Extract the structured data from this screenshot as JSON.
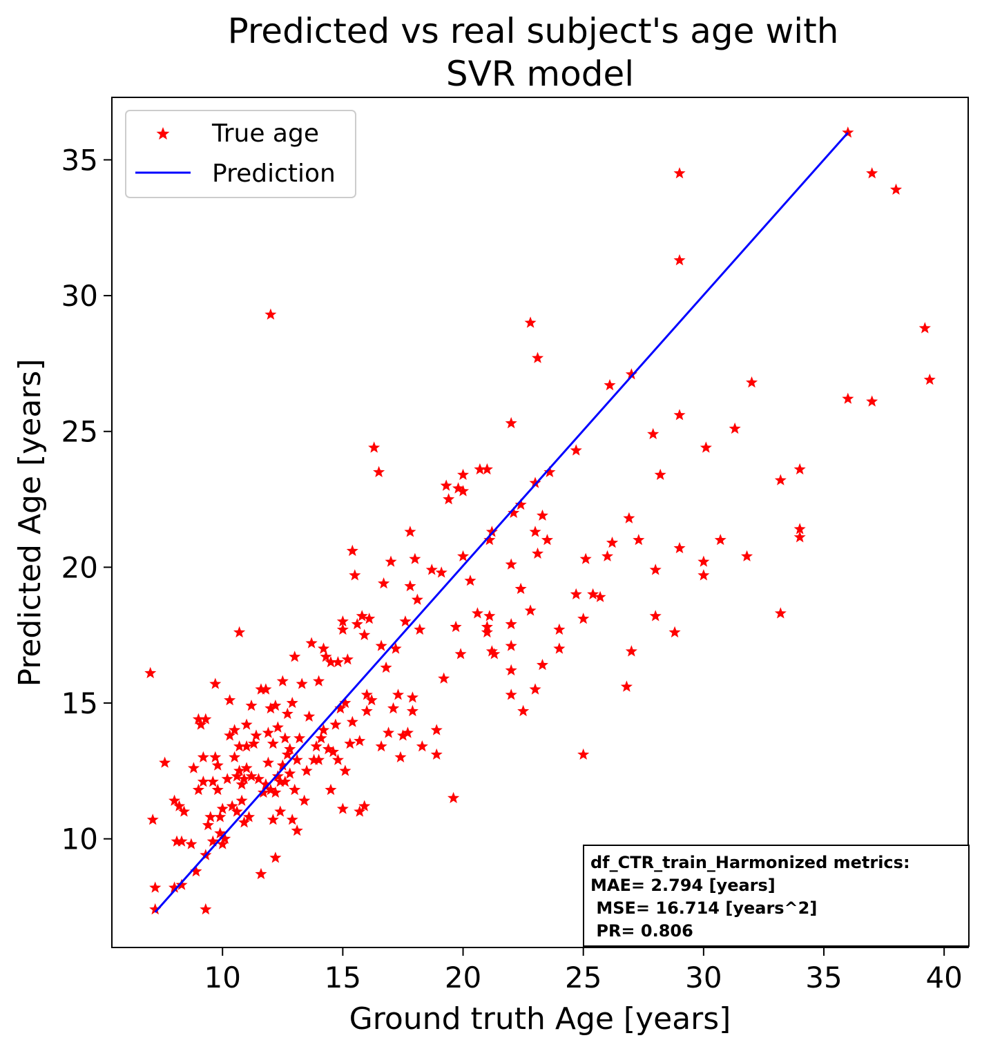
{
  "chart_data": {
    "type": "scatter",
    "title_lines": [
      "Predicted vs real subject's age with",
      "SVR model"
    ],
    "xlabel": "Ground truth Age [years]",
    "ylabel": "Predicted Age [years]",
    "xlim": [
      5.4,
      41
    ],
    "ylim": [
      6,
      37.3
    ],
    "xticks": [
      10,
      15,
      20,
      25,
      30,
      35,
      40
    ],
    "yticks": [
      10,
      15,
      20,
      25,
      30,
      35
    ],
    "grid": false,
    "legend": {
      "placement": "top-left",
      "entries": [
        {
          "label": "True age",
          "marker": "star",
          "color": "#ff0000"
        },
        {
          "label": "Prediction",
          "marker": "line",
          "color": "#0000ff"
        }
      ]
    },
    "metrics_box": {
      "placement": "bottom-right",
      "lines": [
        "df_CTR_train_Harmonized metrics:",
        "MAE= 2.794 [years]",
        " MSE= 16.714 [years^2]",
        " PR= 0.806"
      ]
    },
    "series": [
      {
        "name": "True age",
        "color": "#ff0000",
        "points": [
          [
            7.0,
            16.1
          ],
          [
            7.1,
            10.7
          ],
          [
            7.2,
            7.4
          ],
          [
            7.2,
            8.2
          ],
          [
            7.6,
            12.8
          ],
          [
            8.0,
            11.4
          ],
          [
            8.0,
            8.2
          ],
          [
            8.1,
            9.9
          ],
          [
            8.2,
            11.2
          ],
          [
            8.3,
            8.3
          ],
          [
            8.3,
            9.9
          ],
          [
            8.4,
            11.0
          ],
          [
            8.7,
            9.8
          ],
          [
            8.8,
            12.6
          ],
          [
            8.9,
            8.8
          ],
          [
            9.0,
            11.8
          ],
          [
            9.0,
            14.4
          ],
          [
            9.1,
            14.2
          ],
          [
            9.2,
            13.0
          ],
          [
            9.2,
            12.1
          ],
          [
            9.3,
            14.4
          ],
          [
            9.3,
            9.4
          ],
          [
            9.3,
            7.4
          ],
          [
            9.4,
            10.5
          ],
          [
            9.5,
            10.8
          ],
          [
            9.6,
            12.1
          ],
          [
            9.6,
            9.9
          ],
          [
            9.7,
            13.0
          ],
          [
            9.7,
            15.7
          ],
          [
            9.8,
            12.7
          ],
          [
            9.8,
            11.8
          ],
          [
            9.9,
            10.8
          ],
          [
            9.9,
            10.2
          ],
          [
            10.0,
            11.1
          ],
          [
            10.0,
            9.8
          ],
          [
            10.1,
            10.0
          ],
          [
            10.2,
            12.2
          ],
          [
            10.3,
            13.8
          ],
          [
            10.3,
            15.1
          ],
          [
            10.4,
            11.2
          ],
          [
            10.5,
            13.0
          ],
          [
            10.5,
            14.0
          ],
          [
            10.6,
            12.3
          ],
          [
            10.6,
            11.0
          ],
          [
            10.7,
            12.5
          ],
          [
            10.7,
            13.4
          ],
          [
            10.7,
            17.6
          ],
          [
            10.8,
            12.0
          ],
          [
            10.8,
            11.4
          ],
          [
            10.9,
            10.6
          ],
          [
            10.9,
            12.2
          ],
          [
            11.0,
            13.4
          ],
          [
            11.0,
            14.2
          ],
          [
            11.0,
            12.6
          ],
          [
            11.1,
            10.8
          ],
          [
            11.2,
            14.9
          ],
          [
            11.2,
            12.3
          ],
          [
            11.3,
            13.5
          ],
          [
            11.4,
            13.8
          ],
          [
            11.5,
            12.2
          ],
          [
            11.6,
            15.5
          ],
          [
            11.6,
            8.7
          ],
          [
            11.7,
            11.7
          ],
          [
            11.8,
            15.5
          ],
          [
            11.8,
            12.0
          ],
          [
            11.9,
            13.9
          ],
          [
            11.9,
            12.8
          ],
          [
            12.0,
            11.8
          ],
          [
            12.0,
            14.8
          ],
          [
            12.0,
            29.3
          ],
          [
            12.1,
            13.5
          ],
          [
            12.1,
            10.7
          ],
          [
            12.2,
            9.3
          ],
          [
            12.2,
            14.9
          ],
          [
            12.2,
            11.7
          ],
          [
            12.3,
            12.3
          ],
          [
            12.3,
            14.1
          ],
          [
            12.4,
            12.1
          ],
          [
            12.4,
            11.0
          ],
          [
            12.5,
            12.7
          ],
          [
            12.5,
            15.8
          ],
          [
            12.6,
            13.7
          ],
          [
            12.6,
            12.1
          ],
          [
            12.7,
            14.6
          ],
          [
            12.7,
            13.1
          ],
          [
            12.8,
            12.4
          ],
          [
            12.8,
            13.3
          ],
          [
            12.9,
            15.0
          ],
          [
            12.9,
            10.7
          ],
          [
            13.0,
            11.8
          ],
          [
            13.0,
            16.7
          ],
          [
            13.1,
            12.9
          ],
          [
            13.1,
            10.3
          ],
          [
            13.2,
            13.7
          ],
          [
            13.3,
            15.7
          ],
          [
            13.4,
            11.4
          ],
          [
            13.5,
            12.5
          ],
          [
            13.6,
            14.5
          ],
          [
            13.7,
            17.2
          ],
          [
            13.8,
            12.9
          ],
          [
            13.9,
            13.4
          ],
          [
            14.0,
            15.8
          ],
          [
            14.0,
            12.9
          ],
          [
            14.1,
            13.7
          ],
          [
            14.2,
            14.0
          ],
          [
            14.2,
            17.0
          ],
          [
            14.3,
            16.7
          ],
          [
            14.4,
            13.3
          ],
          [
            14.5,
            11.8
          ],
          [
            14.5,
            16.5
          ],
          [
            14.6,
            13.2
          ],
          [
            14.7,
            14.2
          ],
          [
            14.8,
            12.9
          ],
          [
            14.8,
            16.5
          ],
          [
            14.9,
            14.8
          ],
          [
            15.0,
            17.7
          ],
          [
            15.0,
            18.0
          ],
          [
            15.0,
            11.1
          ],
          [
            15.1,
            15.0
          ],
          [
            15.1,
            12.5
          ],
          [
            15.2,
            16.6
          ],
          [
            15.3,
            13.5
          ],
          [
            15.4,
            20.6
          ],
          [
            15.4,
            14.3
          ],
          [
            15.5,
            19.7
          ],
          [
            15.6,
            17.9
          ],
          [
            15.7,
            13.6
          ],
          [
            15.7,
            11.0
          ],
          [
            15.8,
            18.2
          ],
          [
            15.9,
            17.5
          ],
          [
            15.9,
            11.2
          ],
          [
            16.0,
            15.3
          ],
          [
            16.0,
            14.7
          ],
          [
            16.1,
            18.1
          ],
          [
            16.2,
            15.1
          ],
          [
            16.3,
            24.4
          ],
          [
            16.5,
            23.5
          ],
          [
            16.6,
            13.4
          ],
          [
            16.6,
            17.1
          ],
          [
            16.7,
            19.4
          ],
          [
            16.8,
            16.3
          ],
          [
            16.9,
            13.9
          ],
          [
            17.0,
            20.2
          ],
          [
            17.1,
            14.8
          ],
          [
            17.2,
            17.0
          ],
          [
            17.3,
            15.3
          ],
          [
            17.4,
            13.0
          ],
          [
            17.5,
            13.8
          ],
          [
            17.6,
            18.0
          ],
          [
            17.7,
            13.9
          ],
          [
            17.8,
            21.3
          ],
          [
            17.8,
            19.3
          ],
          [
            17.9,
            15.2
          ],
          [
            17.9,
            14.7
          ],
          [
            18.0,
            20.3
          ],
          [
            18.1,
            18.8
          ],
          [
            18.2,
            17.7
          ],
          [
            18.3,
            13.4
          ],
          [
            18.7,
            19.9
          ],
          [
            18.9,
            14.0
          ],
          [
            18.9,
            13.1
          ],
          [
            19.1,
            19.8
          ],
          [
            19.2,
            15.9
          ],
          [
            19.3,
            23.0
          ],
          [
            19.4,
            22.5
          ],
          [
            19.6,
            11.5
          ],
          [
            19.7,
            17.8
          ],
          [
            19.8,
            22.9
          ],
          [
            19.9,
            16.8
          ],
          [
            20.0,
            23.4
          ],
          [
            20.0,
            22.8
          ],
          [
            20.0,
            20.4
          ],
          [
            20.3,
            19.5
          ],
          [
            20.6,
            18.3
          ],
          [
            20.7,
            23.6
          ],
          [
            21.0,
            23.6
          ],
          [
            21.0,
            17.8
          ],
          [
            21.0,
            17.6
          ],
          [
            21.1,
            21.0
          ],
          [
            21.1,
            18.2
          ],
          [
            21.2,
            21.3
          ],
          [
            21.2,
            16.9
          ],
          [
            21.3,
            16.8
          ],
          [
            22.0,
            25.3
          ],
          [
            22.0,
            20.1
          ],
          [
            22.0,
            17.9
          ],
          [
            22.0,
            17.1
          ],
          [
            22.0,
            16.2
          ],
          [
            22.0,
            15.3
          ],
          [
            22.1,
            22.0
          ],
          [
            22.4,
            22.3
          ],
          [
            22.4,
            19.2
          ],
          [
            22.5,
            14.7
          ],
          [
            22.8,
            29.0
          ],
          [
            22.8,
            18.4
          ],
          [
            23.0,
            23.1
          ],
          [
            23.0,
            21.3
          ],
          [
            23.0,
            15.5
          ],
          [
            23.1,
            27.7
          ],
          [
            23.1,
            20.5
          ],
          [
            23.3,
            16.4
          ],
          [
            23.3,
            21.9
          ],
          [
            23.5,
            21.0
          ],
          [
            23.6,
            23.5
          ],
          [
            24.0,
            17.7
          ],
          [
            24.0,
            17.0
          ],
          [
            24.7,
            24.3
          ],
          [
            24.7,
            19.0
          ],
          [
            25.0,
            13.1
          ],
          [
            25.0,
            18.1
          ],
          [
            25.1,
            20.3
          ],
          [
            25.4,
            19.0
          ],
          [
            25.7,
            18.9
          ],
          [
            26.0,
            20.4
          ],
          [
            26.1,
            26.7
          ],
          [
            26.2,
            20.9
          ],
          [
            26.8,
            15.6
          ],
          [
            26.9,
            21.8
          ],
          [
            27.0,
            27.1
          ],
          [
            27.0,
            16.9
          ],
          [
            27.3,
            21.0
          ],
          [
            27.9,
            24.9
          ],
          [
            28.0,
            19.9
          ],
          [
            28.0,
            18.2
          ],
          [
            28.2,
            23.4
          ],
          [
            28.8,
            17.6
          ],
          [
            29.0,
            34.5
          ],
          [
            29.0,
            31.3
          ],
          [
            29.0,
            25.6
          ],
          [
            29.0,
            20.7
          ],
          [
            30.0,
            20.2
          ],
          [
            30.0,
            19.7
          ],
          [
            30.1,
            24.4
          ],
          [
            30.7,
            21.0
          ],
          [
            31.3,
            25.1
          ],
          [
            31.8,
            20.4
          ],
          [
            32.0,
            26.8
          ],
          [
            33.2,
            23.2
          ],
          [
            33.2,
            18.3
          ],
          [
            34.0,
            23.6
          ],
          [
            34.0,
            21.4
          ],
          [
            34.0,
            21.1
          ],
          [
            36.0,
            36.0
          ],
          [
            36.0,
            26.2
          ],
          [
            37.0,
            34.5
          ],
          [
            37.0,
            26.1
          ],
          [
            38.0,
            33.9
          ],
          [
            39.2,
            28.8
          ],
          [
            39.4,
            26.9
          ]
        ]
      },
      {
        "name": "Prediction",
        "color": "#0000ff",
        "line": [
          [
            7.2,
            7.3
          ],
          [
            36.0,
            36.0
          ]
        ]
      }
    ]
  }
}
